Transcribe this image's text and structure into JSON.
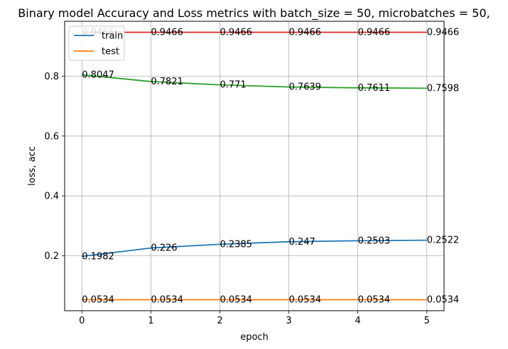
{
  "chart_data": {
    "type": "line",
    "title": "Binary model Accuracy and Loss metrics with batch_size = 50, microbatches = 50,",
    "xlabel": "epoch",
    "ylabel": "loss, acc",
    "x": [
      0,
      1,
      2,
      3,
      4,
      5
    ],
    "xticks": [
      "0",
      "1",
      "2",
      "3",
      "4",
      "5"
    ],
    "yticks": [
      "0.2",
      "0.4",
      "0.6",
      "0.8"
    ],
    "xlim": [
      -0.25,
      5.25
    ],
    "ylim": [
      0.0167,
      0.9833
    ],
    "grid": true,
    "legend_position": "top-left",
    "series": [
      {
        "name": "train",
        "color": "#1f77b4",
        "values": [
          0.1982,
          0.226,
          0.2385,
          0.247,
          0.2503,
          0.2522
        ],
        "labels": [
          "0.1982",
          "0.226",
          "0.2385",
          "0.247",
          "0.2503",
          "0.2522"
        ]
      },
      {
        "name": "test",
        "color": "#ff7f0e",
        "values": [
          0.0534,
          0.0534,
          0.0534,
          0.0534,
          0.0534,
          0.0534
        ],
        "labels": [
          "0.0534",
          "0.0534",
          "0.0534",
          "0.0534",
          "0.0534",
          "0.0534"
        ]
      },
      {
        "color": "#2ca02c",
        "values": [
          0.8047,
          0.7821,
          0.771,
          0.7639,
          0.7611,
          0.7598
        ],
        "labels": [
          "0.8047",
          "0.7821",
          "0.771",
          "0.7639",
          "0.7611",
          "0.7598"
        ]
      },
      {
        "color": "#d62728",
        "values": [
          0.9466,
          0.9466,
          0.9466,
          0.9466,
          0.9466,
          0.9466
        ],
        "labels": [
          "0.9466",
          "0.9466",
          "0.9466",
          "0.9466",
          "0.9466",
          "0.9466"
        ]
      }
    ]
  }
}
